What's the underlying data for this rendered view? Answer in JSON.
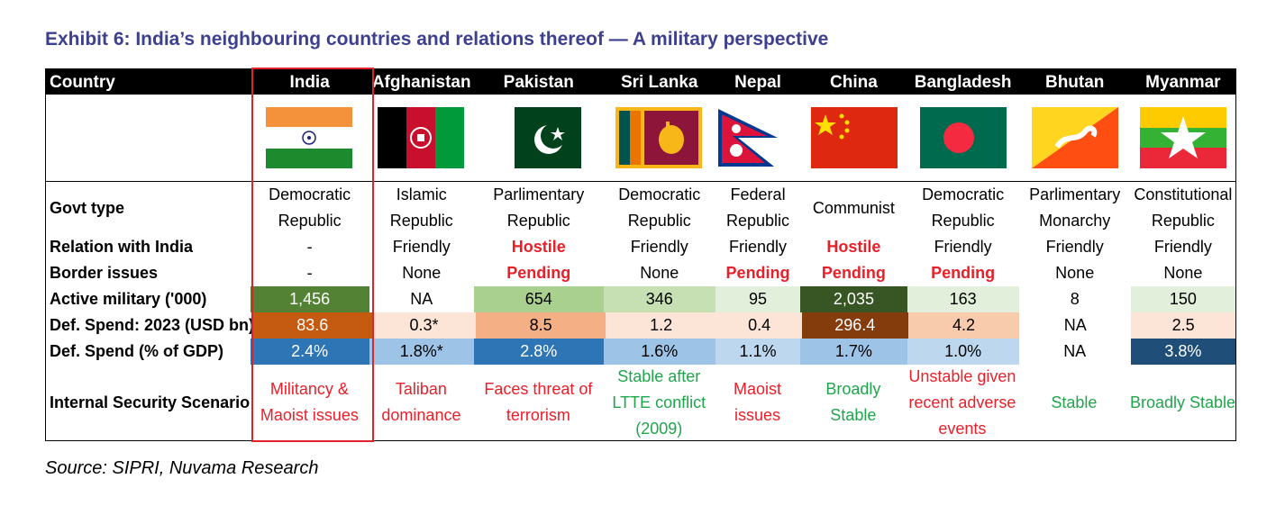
{
  "title": "Exhibit 6: India’s neighbouring countries and relations thereof — A military perspective",
  "source": "Source: SIPRI, Nuvama Research",
  "chart_data": {
    "type": "table",
    "header_label": "Country",
    "countries": [
      "India",
      "Afghanistan",
      "Pakistan",
      "Sri Lanka",
      "Nepal",
      "China",
      "Bangladesh",
      "Bhutan",
      "Myanmar"
    ],
    "row_labels": {
      "govt": "Govt type",
      "relation": "Relation with India",
      "border": "Border issues",
      "military": "Active military ('000)",
      "spend": "Def. Spend: 2023 (USD bn)",
      "gdp": "Def. Spend (% of GDP)",
      "security": "Internal Security Scenario"
    },
    "govt_type": [
      [
        "Democratic",
        "Republic"
      ],
      [
        "Islamic",
        "Republic"
      ],
      [
        "Parlimentary",
        "Republic"
      ],
      [
        "Democratic",
        "Republic"
      ],
      [
        "Federal",
        "Republic"
      ],
      [
        "Communist"
      ],
      [
        "Democratic",
        "Republic"
      ],
      [
        "Parlimentary",
        "Monarchy"
      ],
      [
        "Constitutional",
        "Republic"
      ]
    ],
    "relation": [
      "-",
      "Friendly",
      "Hostile",
      "Friendly",
      "Friendly",
      "Hostile",
      "Friendly",
      "Friendly",
      "Friendly"
    ],
    "relation_emphasis": [
      false,
      false,
      true,
      false,
      false,
      true,
      false,
      false,
      false
    ],
    "border": [
      "-",
      "None",
      "Pending",
      "None",
      "Pending",
      "Pending",
      "Pending",
      "None",
      "None"
    ],
    "border_emphasis": [
      false,
      false,
      true,
      false,
      true,
      true,
      true,
      false,
      false
    ],
    "active_military": [
      "1,456",
      "NA",
      "654",
      "346",
      "95",
      "2,035",
      "163",
      "8",
      "150"
    ],
    "active_military_colors": [
      "#548235",
      "#ffffff",
      "#a9d08e",
      "#c6e0b4",
      "#e2efda",
      "#375623",
      "#e2efda",
      "#ffffff",
      "#e2efda"
    ],
    "def_spend_2023": [
      "83.6",
      "0.3*",
      "8.5",
      "1.2",
      "0.4",
      "296.4",
      "4.2",
      "NA",
      "2.5"
    ],
    "def_spend_colors": [
      "#c55a11",
      "#fce4d6",
      "#f4b084",
      "#fce4d6",
      "#fce4d6",
      "#843c0c",
      "#f8cbad",
      "#ffffff",
      "#fce4d6"
    ],
    "def_spend_gdp": [
      "2.4%",
      "1.8%*",
      "2.8%",
      "1.6%",
      "1.1%",
      "1.7%",
      "1.0%",
      "NA",
      "3.8%"
    ],
    "def_spend_gdp_colors": [
      "#2e75b6",
      "#9dc3e6",
      "#2e75b6",
      "#9dc3e6",
      "#bdd7ee",
      "#9dc3e6",
      "#bdd7ee",
      "#ffffff",
      "#1f4e79"
    ],
    "security_scenario": [
      [
        "Militancy &",
        "Maoist issues"
      ],
      [
        "Taliban",
        "dominance"
      ],
      [
        "Faces threat of",
        "terrorism"
      ],
      [
        "Stable after",
        "LTTE conflict",
        "(2009)"
      ],
      [
        "Maoist",
        "issues"
      ],
      [
        "Broadly",
        "Stable"
      ],
      [
        "Unstable given",
        "recent adverse",
        "events"
      ],
      [
        "Stable"
      ],
      [
        "Broadly Stable"
      ]
    ],
    "security_tone": [
      "red",
      "red",
      "red",
      "green",
      "red",
      "green",
      "red",
      "green",
      "green"
    ],
    "highlighted_country": "India"
  },
  "colors": {
    "title": "#3d3f8f",
    "negative": "#e8202a",
    "positive": "#1fa54b",
    "highlight_border": "#e0232a"
  }
}
